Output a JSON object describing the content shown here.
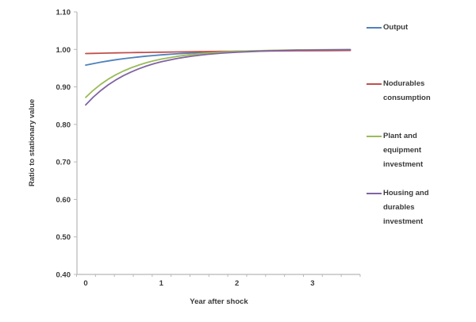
{
  "chart_data": {
    "type": "line",
    "title": "",
    "xlabel": "Year after shock",
    "ylabel": "Ratio to stationary value",
    "xlim": [
      0,
      3.75
    ],
    "ylim": [
      0.4,
      1.1
    ],
    "grid": false,
    "legend_position": "right",
    "colors": {
      "axis": "#b8b8b8",
      "text": "#3a3a3a",
      "background": "#ffffff"
    },
    "yticks": {
      "values": [
        1.1,
        1.0,
        0.9,
        0.8,
        0.7,
        0.6,
        0.5,
        0.4
      ],
      "labels": [
        "1.10",
        "1.00",
        "0.90",
        "0.80",
        "0.70",
        "0.60",
        "0.50",
        "0.40"
      ]
    },
    "xticks": {
      "values": [
        0,
        1,
        2,
        3
      ],
      "labels": [
        "0",
        "1",
        "2",
        "3"
      ]
    },
    "x": [
      0,
      0.1,
      0.2,
      0.3,
      0.4,
      0.5,
      0.6,
      0.7,
      0.8,
      0.9,
      1.0,
      1.2,
      1.4,
      1.6,
      1.8,
      2.0,
      2.4,
      2.8,
      3.2,
      3.5
    ],
    "series": [
      {
        "name": "Output",
        "color": "#4F81BD",
        "values": [
          0.958,
          0.9622,
          0.966,
          0.9693,
          0.9724,
          0.9752,
          0.9776,
          0.9799,
          0.9819,
          0.9837,
          0.9853,
          0.9881,
          0.9903,
          0.9922,
          0.9937,
          0.9949,
          0.9966,
          0.9978,
          0.9985,
          0.9989
        ]
      },
      {
        "name": "Nodurables consumption",
        "color": "#C0504D",
        "values": [
          0.989,
          0.9894,
          0.9898,
          0.9902,
          0.9906,
          0.991,
          0.9913,
          0.9917,
          0.992,
          0.9923,
          0.9926,
          0.9932,
          0.9937,
          0.9942,
          0.9946,
          0.9951,
          0.9958,
          0.9964,
          0.9969,
          0.9973
        ]
      },
      {
        "name": "Plant and equipment investment",
        "color": "#9BBB59",
        "values": [
          0.872,
          0.8909,
          0.9071,
          0.9208,
          0.9325,
          0.9425,
          0.951,
          0.9582,
          0.9644,
          0.9697,
          0.9742,
          0.9812,
          0.9864,
          0.9901,
          0.9928,
          0.9948,
          0.9973,
          0.9986,
          0.9992,
          0.9995
        ]
      },
      {
        "name": "Housing and durables investment",
        "color": "#8064A2",
        "values": [
          0.852,
          0.8726,
          0.8904,
          0.9056,
          0.9188,
          0.9301,
          0.9398,
          0.9482,
          0.9554,
          0.9616,
          0.967,
          0.9755,
          0.9819,
          0.9866,
          0.9901,
          0.9926,
          0.996,
          0.9978,
          0.9988,
          0.9992
        ]
      }
    ]
  }
}
